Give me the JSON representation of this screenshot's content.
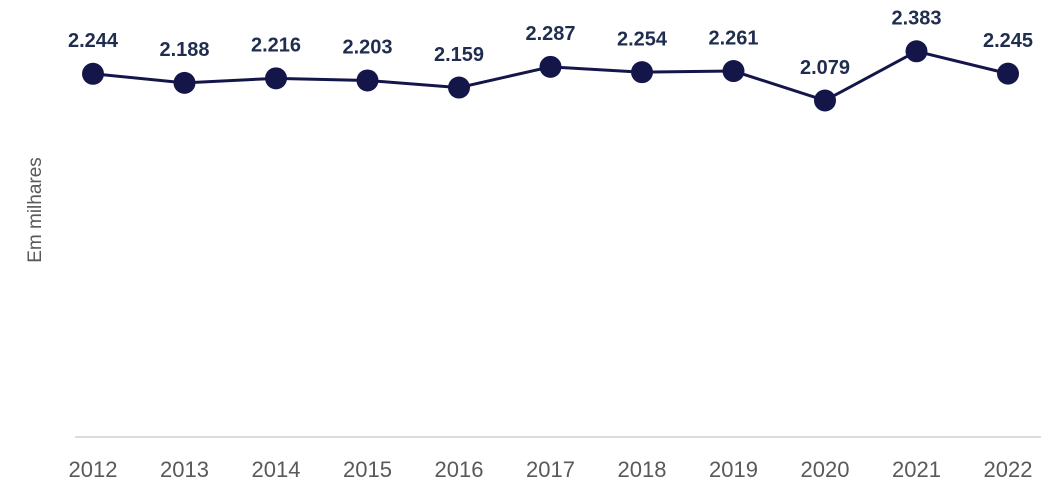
{
  "chart_data": {
    "type": "line",
    "y_label": "Em milhares",
    "categories": [
      "2012",
      "2013",
      "2014",
      "2015",
      "2016",
      "2017",
      "2018",
      "2019",
      "2020",
      "2021",
      "2022"
    ],
    "values": [
      2244,
      2188,
      2216,
      2203,
      2159,
      2287,
      2254,
      2261,
      2079,
      2383,
      2245
    ],
    "value_labels": [
      "2.244",
      "2.188",
      "2.216",
      "2.203",
      "2.159",
      "2.287",
      "2.254",
      "2.261",
      "2.079",
      "2.383",
      "2.245"
    ],
    "color": "#14164a",
    "ylim": [
      0,
      2700
    ]
  }
}
